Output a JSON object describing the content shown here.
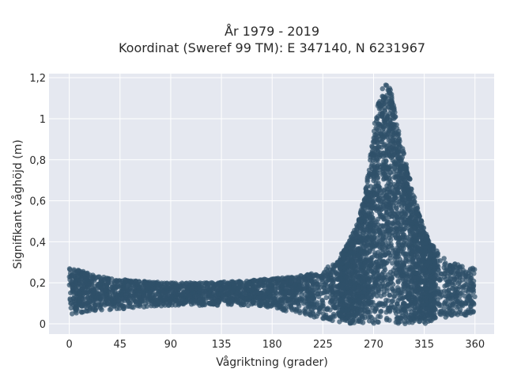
{
  "chart_data": {
    "type": "scatter",
    "title_lines": [
      "År 1979 - 2019",
      "Koordinat (Sweref 99 TM): E 347140, N 6231967"
    ],
    "xlabel": "Vågriktning (grader)",
    "ylabel": "Signifikant våghöjd (m)",
    "xlim": [
      -18,
      377
    ],
    "ylim": [
      -0.05,
      1.22
    ],
    "xticks": [
      0,
      45,
      90,
      135,
      180,
      225,
      270,
      315,
      360
    ],
    "yticks": [
      0,
      0.2,
      0.4,
      0.6,
      0.8,
      1,
      1.2
    ],
    "ytick_labels": [
      "0",
      "0,2",
      "0,4",
      "0,6",
      "0,8",
      "1",
      "1,2"
    ],
    "grid": true,
    "plot_background": "#e5e8f0",
    "marker_color": "#2f5069",
    "envelope": {
      "direction": [
        0,
        10,
        20,
        40,
        60,
        90,
        120,
        150,
        180,
        200,
        220,
        235,
        245,
        255,
        262,
        268,
        272,
        276,
        280,
        284,
        288,
        292,
        296,
        300,
        305,
        310,
        315,
        320,
        330,
        340,
        350,
        360
      ],
      "max_height": [
        0.27,
        0.26,
        0.24,
        0.22,
        0.21,
        0.2,
        0.2,
        0.21,
        0.22,
        0.23,
        0.25,
        0.3,
        0.37,
        0.48,
        0.62,
        0.85,
        1.02,
        1.12,
        1.18,
        1.16,
        1.08,
        0.95,
        0.85,
        0.76,
        0.64,
        0.55,
        0.46,
        0.4,
        0.33,
        0.3,
        0.28,
        0.27
      ],
      "min_height": [
        0.04,
        0.05,
        0.06,
        0.07,
        0.08,
        0.09,
        0.09,
        0.09,
        0.08,
        0.05,
        0.03,
        0.01,
        0.0,
        0.0,
        0.0,
        0.0,
        0.0,
        0.0,
        0.0,
        0.0,
        0.0,
        0.0,
        0.0,
        0.0,
        0.0,
        0.0,
        0.0,
        0.01,
        0.02,
        0.03,
        0.04,
        0.04
      ]
    }
  }
}
